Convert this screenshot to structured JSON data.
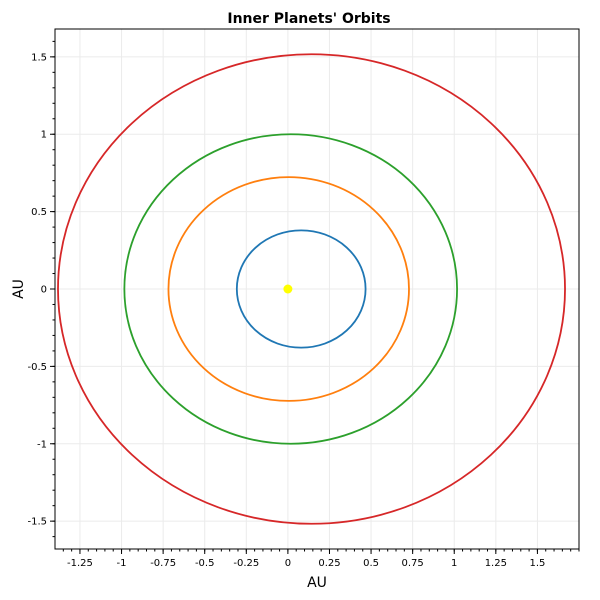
{
  "chart_data": {
    "type": "line",
    "title": "Inner Planets' Orbits",
    "xlabel": "AU",
    "ylabel": "AU",
    "xlim": [
      -1.4,
      1.75
    ],
    "ylim": [
      -1.68,
      1.68
    ],
    "grid": true,
    "x_ticks": [
      "-1.25",
      "-1",
      "-0.75",
      "-0.5",
      "-0.25",
      "0",
      "0.25",
      "0.5",
      "0.75",
      "1",
      "1.25",
      "1.5"
    ],
    "x_tick_values": [
      -1.25,
      -1,
      -0.75,
      -0.5,
      -0.25,
      0,
      0.25,
      0.5,
      0.75,
      1,
      1.25,
      1.5
    ],
    "y_ticks": [
      "1.5",
      "1",
      "0.5",
      "0",
      "-0.5",
      "-1",
      "-1.5"
    ],
    "y_tick_values": [
      1.5,
      1,
      0.5,
      0,
      -0.5,
      -1,
      -1.5
    ],
    "series": [
      {
        "center": [
          0.08,
          0
        ],
        "semi_axes": [
          0.387,
          0.379
        ],
        "color": "#1f77b4"
      },
      {
        "center": [
          0.005,
          0
        ],
        "semi_axes": [
          0.723,
          0.723
        ],
        "color": "#ff7f0e"
      },
      {
        "center": [
          0.017,
          0
        ],
        "semi_axes": [
          1.0,
          1.0
        ],
        "color": "#2ca02c"
      },
      {
        "center": [
          0.142,
          0
        ],
        "semi_axes": [
          1.524,
          1.517
        ],
        "color": "#d62728"
      }
    ],
    "sun": {
      "x": 0,
      "y": 0,
      "color": "#ffff00"
    }
  }
}
